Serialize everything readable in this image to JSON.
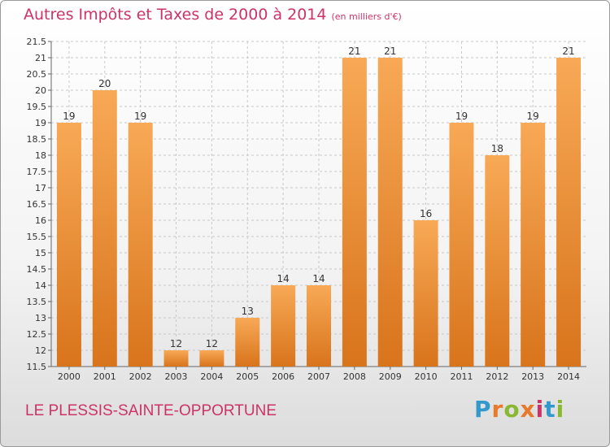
{
  "header": {
    "title": "Autres Impôts et Taxes de 2000 à 2014",
    "subtitle": "(en milliers d'€)"
  },
  "footer": {
    "commune": "LE PLESSIS-SAINTE-OPPORTUNE",
    "logo": "Proxiti"
  },
  "colors": {
    "title": "#cc3366",
    "bar_light": "#f8a956",
    "bar_dark": "#d8741c",
    "logo_letters": [
      "#3399cc",
      "#e8792a",
      "#8ab833",
      "#e8792a",
      "#cc3366",
      "#3399cc",
      "#8ab833"
    ]
  },
  "chart_data": {
    "type": "bar",
    "categories": [
      "2000",
      "2001",
      "2002",
      "2003",
      "2004",
      "2005",
      "2006",
      "2007",
      "2008",
      "2009",
      "2010",
      "2011",
      "2012",
      "2013",
      "2014"
    ],
    "values": [
      19,
      20,
      19,
      12,
      12,
      13,
      14,
      14,
      21,
      21,
      16,
      19,
      18,
      19,
      21
    ],
    "ylim": [
      11.5,
      21.5
    ],
    "yticks": [
      "11.5",
      "12",
      "12.5",
      "13",
      "13.5",
      "14",
      "14.5",
      "15",
      "15.5",
      "16",
      "16.5",
      "17",
      "17.5",
      "18",
      "18.5",
      "19",
      "19.5",
      "20",
      "20.5",
      "21",
      "21.5"
    ],
    "grid": true,
    "title": "Autres Impôts et Taxes de 2000 à 2014",
    "xlabel": "",
    "ylabel": ""
  }
}
